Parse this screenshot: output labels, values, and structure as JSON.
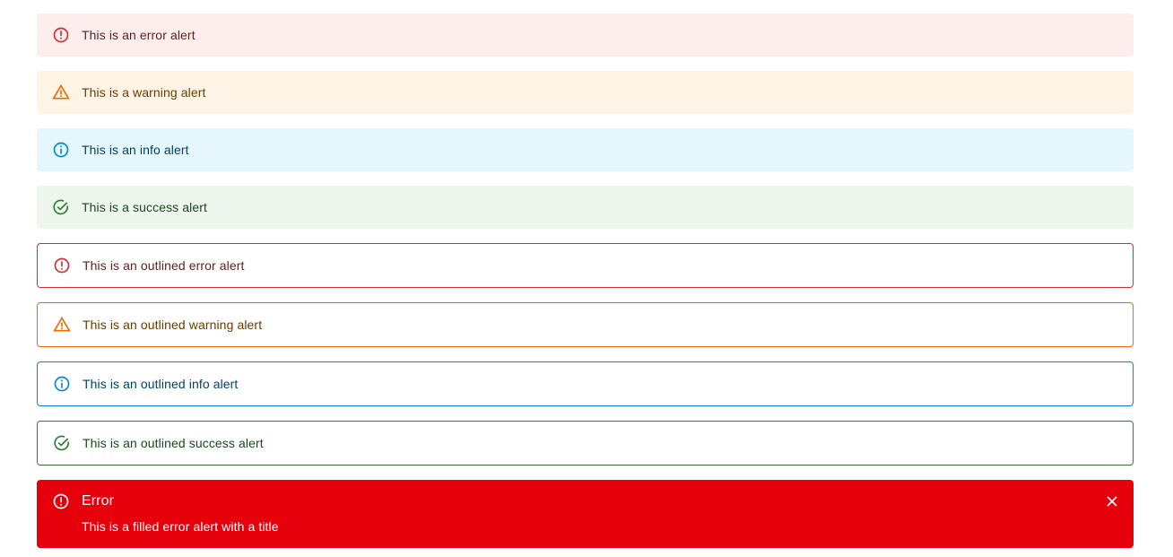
{
  "standard_alerts": [
    {
      "severity": "error",
      "icon": "error-outline-icon",
      "message": "This is an error alert"
    },
    {
      "severity": "warning",
      "icon": "warning-triangle-icon",
      "message": "This is a warning alert"
    },
    {
      "severity": "info",
      "icon": "info-outline-icon",
      "message": "This is an info alert"
    },
    {
      "severity": "success",
      "icon": "check-circle-outline-icon",
      "message": "This is a success alert"
    }
  ],
  "outlined_alerts": [
    {
      "severity": "error",
      "icon": "error-outline-icon",
      "message": "This is an outlined error alert"
    },
    {
      "severity": "warning",
      "icon": "warning-triangle-icon",
      "message": "This is an outlined warning alert"
    },
    {
      "severity": "info",
      "icon": "info-outline-icon",
      "message": "This is an outlined info alert"
    },
    {
      "severity": "success",
      "icon": "check-circle-outline-icon",
      "message": "This is an outlined success alert"
    }
  ],
  "filled_alert": {
    "severity": "error",
    "icon": "error-outline-icon",
    "title": "Error",
    "message": "This is a filled error alert with a title",
    "close_icon": "close-icon"
  },
  "colors": {
    "error": "#d32f2f",
    "warning": "#ed6c02",
    "info": "#0288d1",
    "success": "#2e7d32",
    "filled_error_bg": "#e5000b"
  }
}
